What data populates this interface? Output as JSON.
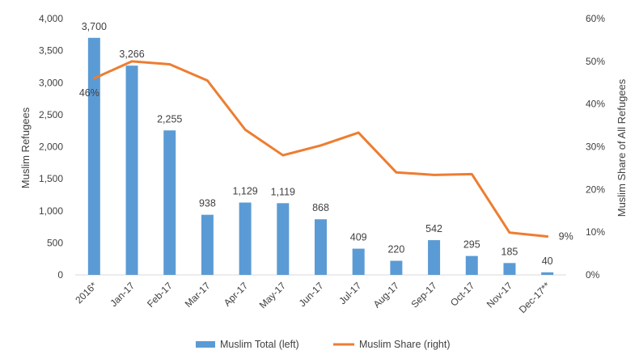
{
  "chart_data": {
    "type": "bar+line",
    "title": "",
    "categories": [
      "2016*",
      "Jan-17",
      "Feb-17",
      "Mar-17",
      "Apr-17",
      "May-17",
      "Jun-17",
      "Jul-17",
      "Aug-17",
      "Sep-17",
      "Oct-17",
      "Nov-17",
      "Dec-17**"
    ],
    "series": [
      {
        "name": "Muslim Total (left)",
        "type": "bar",
        "axis": "left",
        "color": "#5B9BD5",
        "values": [
          3700,
          3266,
          2255,
          938,
          1129,
          1119,
          868,
          409,
          220,
          542,
          295,
          185,
          40
        ],
        "labels": [
          "3,700",
          "3,266",
          "2,255",
          "938",
          "1,129",
          "1,119",
          "868",
          "409",
          "220",
          "542",
          "295",
          "185",
          "40"
        ]
      },
      {
        "name": "Muslim Share (right)",
        "type": "line",
        "axis": "right",
        "color": "#ED7D31",
        "values": [
          46,
          50,
          49.3,
          45.5,
          34,
          28,
          30.3,
          33.3,
          24,
          23.4,
          23.6,
          9.9,
          9
        ],
        "labels": {
          "0": "46%",
          "12": "9%"
        }
      }
    ],
    "ylabel_left": "Muslim Refugees",
    "ylabel_right": "Muslim Share of All Refugees",
    "ylim_left": [
      0,
      4000
    ],
    "ylim_right": [
      0,
      60
    ],
    "yticks_left": [
      "0",
      "500",
      "1,000",
      "1,500",
      "2,000",
      "2,500",
      "3,000",
      "3,500",
      "4,000"
    ],
    "yticks_right": [
      "0%",
      "10%",
      "20%",
      "30%",
      "40%",
      "50%",
      "60%"
    ],
    "grid": false,
    "legend_position": "bottom"
  }
}
